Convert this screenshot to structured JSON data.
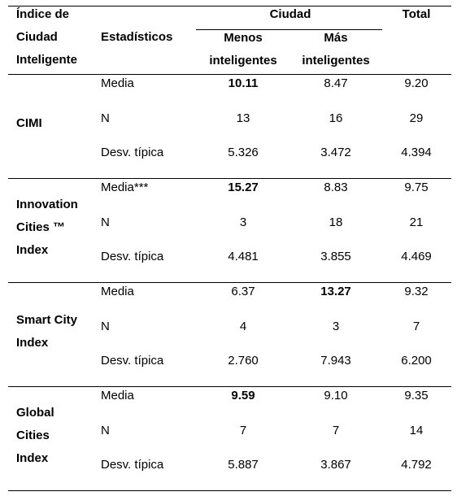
{
  "header": {
    "col1": [
      "Índice de",
      "Ciudad",
      "Inteligente"
    ],
    "col2": "Estadísticos",
    "group": "Ciudad",
    "sub1": [
      "Menos",
      "inteligentes"
    ],
    "sub2": [
      "Más",
      "inteligentes"
    ],
    "total": "Total"
  },
  "groups": [
    {
      "label": [
        "CIMI"
      ],
      "rows": [
        [
          "Media",
          "10.11",
          "8.47",
          "9.20"
        ],
        [
          "N",
          "13",
          "16",
          "29"
        ],
        [
          "Desv. típica",
          "5.326",
          "3.472",
          "4.394"
        ]
      ]
    },
    {
      "label": [
        "Innovation",
        "Cities ™",
        "Index"
      ],
      "rows": [
        [
          "Media***",
          "15.27",
          "8.83",
          "9.75"
        ],
        [
          "N",
          "3",
          "18",
          "21"
        ],
        [
          "Desv. típica",
          "4.481",
          "3.855",
          "4.469"
        ]
      ]
    },
    {
      "label": [
        "Smart City",
        "Index"
      ],
      "rows": [
        [
          "Media",
          "6.37",
          "13.27",
          "9.32"
        ],
        [
          "N",
          "4",
          "3",
          "7"
        ],
        [
          "Desv. típica",
          "2.760",
          "7.943",
          "6.200"
        ]
      ]
    },
    {
      "label": [
        "Global",
        "Cities",
        "Index"
      ],
      "rows": [
        [
          "Media",
          "9.59",
          "9.10",
          "9.35"
        ],
        [
          "N",
          "7",
          "7",
          "14"
        ],
        [
          "Desv. típica",
          "5.887",
          "3.867",
          "4.792"
        ]
      ]
    }
  ]
}
